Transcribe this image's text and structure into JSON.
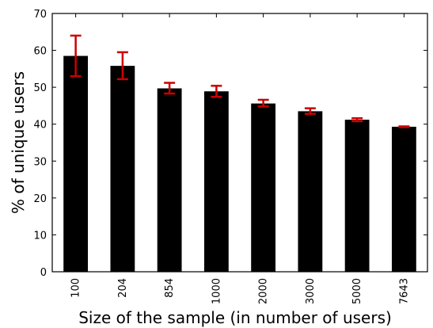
{
  "chart_data": {
    "type": "bar",
    "title": "",
    "xlabel": "Size of the sample (in number of users)",
    "ylabel": "% of unique users",
    "categories": [
      "100",
      "204",
      "854",
      "1000",
      "2000",
      "3000",
      "5000",
      "7643"
    ],
    "values": [
      58.5,
      55.8,
      49.7,
      48.9,
      45.6,
      43.5,
      41.2,
      39.3
    ],
    "error_low": [
      53.0,
      52.2,
      48.3,
      47.4,
      44.8,
      42.8,
      40.8,
      39.2
    ],
    "error_high": [
      64.0,
      59.5,
      51.2,
      50.4,
      46.6,
      44.3,
      41.6,
      39.4
    ],
    "ylim": [
      0,
      70
    ],
    "yticks": [
      0,
      10,
      20,
      30,
      40,
      50,
      60,
      70
    ],
    "grid": false,
    "legend": "none",
    "bar_color": "#000000",
    "error_color": "#cc0000"
  }
}
